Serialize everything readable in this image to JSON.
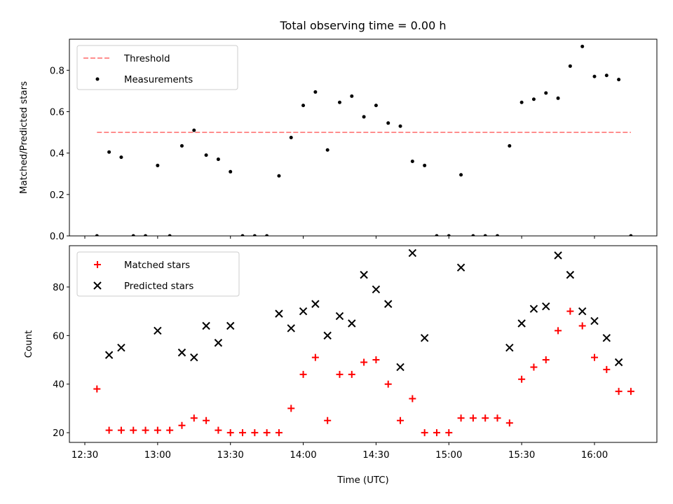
{
  "figure": {
    "title": "Total observing time = 0.00 h",
    "xlabel": "Time (UTC)"
  },
  "chart_data": [
    {
      "type": "scatter",
      "ylabel": "Matched/Predicted stars",
      "ylim": [
        0.0,
        0.95
      ],
      "yticks": [
        "0.0",
        "0.2",
        "0.4",
        "0.6",
        "0.8"
      ],
      "ytick_values": [
        0.0,
        0.2,
        0.4,
        0.6,
        0.8
      ],
      "legend_position": "upper-left",
      "threshold": {
        "name": "Threshold",
        "value": 0.5,
        "x_start": "12:35",
        "x_end": "16:15",
        "color": "#ff7f7f",
        "style": "dashed"
      },
      "series": [
        {
          "name": "Measurements",
          "color": "#000000",
          "marker": "dot",
          "points": [
            [
              "12:35",
              0.0
            ],
            [
              "12:40",
              0.405
            ],
            [
              "12:45",
              0.38
            ],
            [
              "12:50",
              0.0
            ],
            [
              "12:55",
              0.0
            ],
            [
              "13:00",
              0.34
            ],
            [
              "13:05",
              0.0
            ],
            [
              "13:10",
              0.435
            ],
            [
              "13:15",
              0.51
            ],
            [
              "13:20",
              0.39
            ],
            [
              "13:25",
              0.37
            ],
            [
              "13:30",
              0.31
            ],
            [
              "13:35",
              0.0
            ],
            [
              "13:40",
              0.0
            ],
            [
              "13:45",
              0.0
            ],
            [
              "13:50",
              0.29
            ],
            [
              "13:55",
              0.475
            ],
            [
              "14:00",
              0.63
            ],
            [
              "14:05",
              0.695
            ],
            [
              "14:10",
              0.415
            ],
            [
              "14:15",
              0.645
            ],
            [
              "14:20",
              0.675
            ],
            [
              "14:25",
              0.575
            ],
            [
              "14:30",
              0.63
            ],
            [
              "14:35",
              0.545
            ],
            [
              "14:40",
              0.53
            ],
            [
              "14:45",
              0.36
            ],
            [
              "14:50",
              0.34
            ],
            [
              "14:55",
              0.0
            ],
            [
              "15:00",
              0.0
            ],
            [
              "15:05",
              0.295
            ],
            [
              "15:10",
              0.0
            ],
            [
              "15:15",
              0.0
            ],
            [
              "15:20",
              0.0
            ],
            [
              "15:25",
              0.435
            ],
            [
              "15:30",
              0.645
            ],
            [
              "15:35",
              0.66
            ],
            [
              "15:40",
              0.69
            ],
            [
              "15:45",
              0.665
            ],
            [
              "15:50",
              0.82
            ],
            [
              "15:55",
              0.915
            ],
            [
              "16:00",
              0.77
            ],
            [
              "16:05",
              0.775
            ],
            [
              "16:10",
              0.755
            ],
            [
              "16:15",
              0.0
            ]
          ]
        }
      ]
    },
    {
      "type": "scatter",
      "ylabel": "Count",
      "ylim": [
        16,
        97
      ],
      "yticks": [
        "20",
        "40",
        "60",
        "80"
      ],
      "ytick_values": [
        20,
        40,
        60,
        80
      ],
      "legend_position": "upper-left",
      "xticks": [
        "12:30",
        "13:00",
        "13:30",
        "14:00",
        "14:30",
        "15:00",
        "15:30",
        "16:00"
      ],
      "series": [
        {
          "name": "Matched stars",
          "color": "#ff0000",
          "marker": "plus",
          "points": [
            [
              "12:35",
              38
            ],
            [
              "12:40",
              21
            ],
            [
              "12:45",
              21
            ],
            [
              "12:50",
              21
            ],
            [
              "12:55",
              21
            ],
            [
              "13:00",
              21
            ],
            [
              "13:05",
              21
            ],
            [
              "13:10",
              23
            ],
            [
              "13:15",
              26
            ],
            [
              "13:20",
              25
            ],
            [
              "13:25",
              21
            ],
            [
              "13:30",
              20
            ],
            [
              "13:35",
              20
            ],
            [
              "13:40",
              20
            ],
            [
              "13:45",
              20
            ],
            [
              "13:50",
              20
            ],
            [
              "13:55",
              30
            ],
            [
              "14:00",
              44
            ],
            [
              "14:05",
              51
            ],
            [
              "14:10",
              25
            ],
            [
              "14:15",
              44
            ],
            [
              "14:20",
              44
            ],
            [
              "14:25",
              49
            ],
            [
              "14:30",
              50
            ],
            [
              "14:35",
              40
            ],
            [
              "14:40",
              25
            ],
            [
              "14:45",
              34
            ],
            [
              "14:50",
              20
            ],
            [
              "14:55",
              20
            ],
            [
              "15:00",
              20
            ],
            [
              "15:05",
              26
            ],
            [
              "15:10",
              26
            ],
            [
              "15:15",
              26
            ],
            [
              "15:20",
              26
            ],
            [
              "15:25",
              24
            ],
            [
              "15:30",
              42
            ],
            [
              "15:35",
              47
            ],
            [
              "15:40",
              50
            ],
            [
              "15:45",
              62
            ],
            [
              "15:50",
              70
            ],
            [
              "15:55",
              64
            ],
            [
              "16:00",
              51
            ],
            [
              "16:05",
              46
            ],
            [
              "16:10",
              37
            ],
            [
              "16:15",
              37
            ]
          ]
        },
        {
          "name": "Predicted stars",
          "color": "#000000",
          "marker": "x",
          "points": [
            [
              "12:40",
              52
            ],
            [
              "12:45",
              55
            ],
            [
              "13:00",
              62
            ],
            [
              "13:10",
              53
            ],
            [
              "13:15",
              51
            ],
            [
              "13:20",
              64
            ],
            [
              "13:25",
              57
            ],
            [
              "13:30",
              64
            ],
            [
              "13:50",
              69
            ],
            [
              "13:55",
              63
            ],
            [
              "14:00",
              70
            ],
            [
              "14:05",
              73
            ],
            [
              "14:10",
              60
            ],
            [
              "14:15",
              68
            ],
            [
              "14:20",
              65
            ],
            [
              "14:25",
              85
            ],
            [
              "14:30",
              79
            ],
            [
              "14:35",
              73
            ],
            [
              "14:40",
              47
            ],
            [
              "14:45",
              94
            ],
            [
              "14:50",
              59
            ],
            [
              "15:05",
              88
            ],
            [
              "15:25",
              55
            ],
            [
              "15:30",
              65
            ],
            [
              "15:35",
              71
            ],
            [
              "15:40",
              72
            ],
            [
              "15:45",
              93
            ],
            [
              "15:50",
              85
            ],
            [
              "15:55",
              70
            ],
            [
              "16:00",
              66
            ],
            [
              "16:05",
              59
            ],
            [
              "16:10",
              49
            ]
          ]
        }
      ]
    }
  ]
}
